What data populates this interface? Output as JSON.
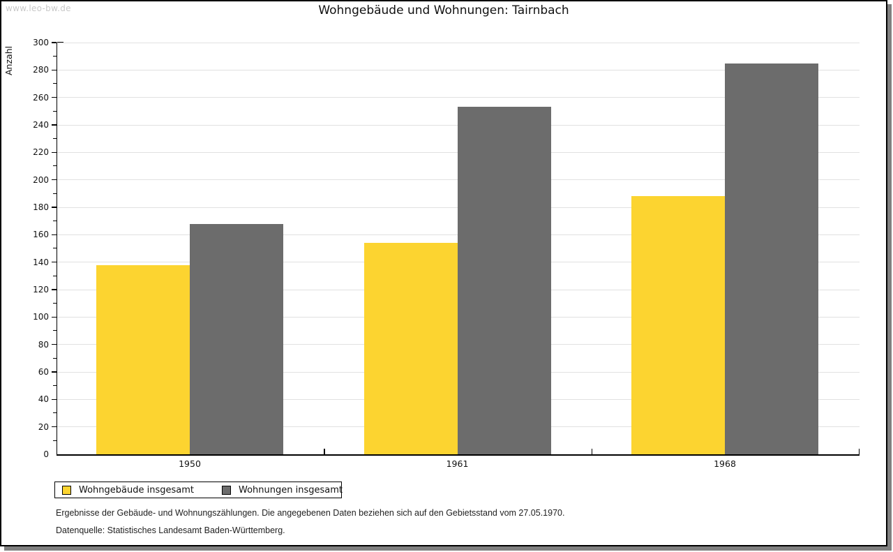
{
  "watermark": "www.leo-bw.de",
  "title": "Wohngebäude und Wohnungen: Tairnbach",
  "ylabel": "Anzahl",
  "legend": [
    {
      "label": "Wohngebäude insgesamt",
      "color": "#FCD430"
    },
    {
      "label": "Wohnungen insgesamt",
      "color": "#6C6C6C"
    }
  ],
  "footnotes": {
    "line1": "Ergebnisse der Gebäude- und Wohnungszählungen. Die angegebenen Daten beziehen sich auf den Gebietsstand vom 27.05.1970.",
    "line2": "Datenquelle: Statistisches Landesamt Baden-Württemberg."
  },
  "colors": {
    "bar_yellow": "#FCD430",
    "bar_gray": "#6C6C6C",
    "gridline": "#e1e1e1",
    "axis": "#000000",
    "watermark": "#c9c9c9",
    "frame_shadow": "#808080"
  },
  "chart_data": {
    "type": "bar",
    "title": "Wohngebäude und Wohnungen: Tairnbach",
    "xlabel": "",
    "ylabel": "Anzahl",
    "categories": [
      "1950",
      "1961",
      "1968"
    ],
    "series": [
      {
        "name": "Wohngebäude insgesamt",
        "color": "#FCD430",
        "values": [
          138,
          154,
          188
        ]
      },
      {
        "name": "Wohnungen insgesamt",
        "color": "#6C6C6C",
        "values": [
          168,
          253,
          285
        ]
      }
    ],
    "ylim": [
      0,
      300
    ],
    "ytick_major": 20,
    "ytick_minor": 10,
    "grid": true,
    "legend_position": "bottom-left"
  }
}
